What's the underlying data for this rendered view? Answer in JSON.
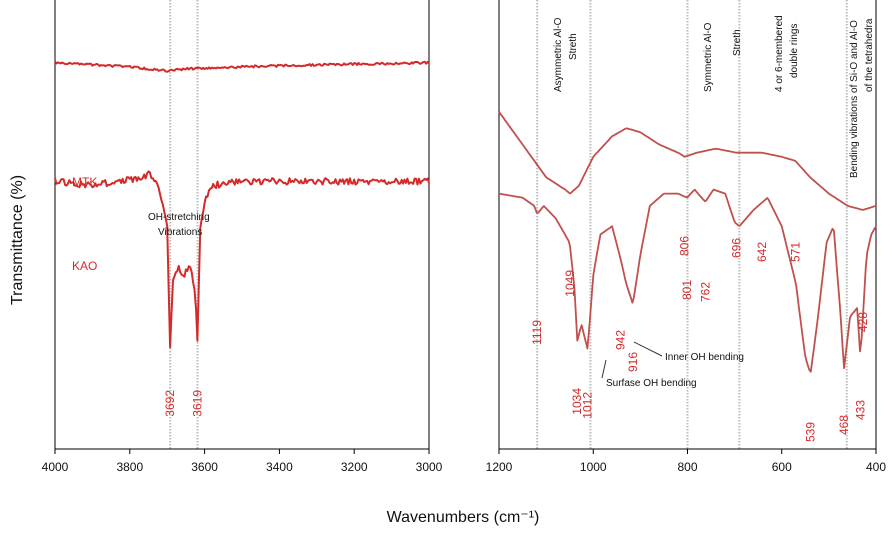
{
  "x_title": "Wavenumbers (cm⁻¹)",
  "y_title": "Transmittance (%)",
  "colors": {
    "series": "#d42a2a",
    "series_dark": "#c0504d",
    "guide": "#bdbdbd",
    "axis": "#000000"
  },
  "chart_data": [
    {
      "type": "line",
      "x_domain": [
        4000,
        3000
      ],
      "x_ticks": [
        "4000",
        "3800",
        "3600",
        "3400",
        "3200",
        "3000"
      ],
      "x_tick_values": [
        4000,
        3800,
        3600,
        3400,
        3200,
        3000
      ],
      "guides": [
        3692,
        3619
      ],
      "series": [
        {
          "name": "MTK",
          "label": "MTK",
          "points": [
            [
              4000,
              0.92
            ],
            [
              3900,
              0.915
            ],
            [
              3800,
              0.91
            ],
            [
              3700,
              0.9
            ],
            [
              3650,
              0.905
            ],
            [
              3500,
              0.91
            ],
            [
              3300,
              0.915
            ],
            [
              3000,
              0.92
            ]
          ]
        },
        {
          "name": "KAO",
          "label": "KAO",
          "points": [
            [
              4000,
              0.63
            ],
            [
              3900,
              0.62
            ],
            [
              3800,
              0.635
            ],
            [
              3760,
              0.64
            ],
            [
              3750,
              0.65
            ],
            [
              3720,
              0.61
            ],
            [
              3700,
              0.52
            ],
            [
              3692,
              0.22
            ],
            [
              3685,
              0.38
            ],
            [
              3670,
              0.42
            ],
            [
              3655,
              0.4
            ],
            [
              3640,
              0.43
            ],
            [
              3625,
              0.36
            ],
            [
              3619,
              0.23
            ],
            [
              3612,
              0.52
            ],
            [
              3600,
              0.58
            ],
            [
              3580,
              0.62
            ],
            [
              3500,
              0.63
            ],
            [
              3300,
              0.63
            ],
            [
              3000,
              0.63
            ]
          ]
        }
      ],
      "peak_labels": [
        "3692",
        "3619"
      ],
      "peak_positions": [
        3692,
        3619
      ],
      "annotations": [
        "OH-stretching",
        "Vibrations"
      ]
    },
    {
      "type": "line",
      "x_domain": [
        1200,
        400
      ],
      "x_ticks": [
        "1200",
        "1000",
        "800",
        "600",
        "400"
      ],
      "x_tick_values": [
        1200,
        1000,
        800,
        600,
        400
      ],
      "guides": [
        1119,
        1006,
        800,
        690,
        462
      ],
      "series": [
        {
          "name": "MTK",
          "points": [
            [
              1200,
              0.8
            ],
            [
              1150,
              0.72
            ],
            [
              1100,
              0.64
            ],
            [
              1060,
              0.61
            ],
            [
              1049,
              0.6
            ],
            [
              1030,
              0.62
            ],
            [
              1000,
              0.69
            ],
            [
              960,
              0.74
            ],
            [
              930,
              0.76
            ],
            [
              900,
              0.75
            ],
            [
              860,
              0.72
            ],
            [
              820,
              0.7
            ],
            [
              806,
              0.69
            ],
            [
              780,
              0.7
            ],
            [
              740,
              0.71
            ],
            [
              696,
              0.7
            ],
            [
              642,
              0.7
            ],
            [
              600,
              0.69
            ],
            [
              571,
              0.68
            ],
            [
              540,
              0.64
            ],
            [
              500,
              0.6
            ],
            [
              460,
              0.57
            ],
            [
              428,
              0.56
            ],
            [
              400,
              0.57
            ]
          ]
        },
        {
          "name": "KAO",
          "points": [
            [
              1200,
              0.6
            ],
            [
              1150,
              0.59
            ],
            [
              1125,
              0.57
            ],
            [
              1119,
              0.55
            ],
            [
              1105,
              0.57
            ],
            [
              1080,
              0.54
            ],
            [
              1050,
              0.48
            ],
            [
              1040,
              0.37
            ],
            [
              1034,
              0.24
            ],
            [
              1025,
              0.28
            ],
            [
              1012,
              0.22
            ],
            [
              1000,
              0.4
            ],
            [
              985,
              0.5
            ],
            [
              960,
              0.52
            ],
            [
              942,
              0.44
            ],
            [
              930,
              0.38
            ],
            [
              916,
              0.33
            ],
            [
              900,
              0.45
            ],
            [
              880,
              0.57
            ],
            [
              850,
              0.6
            ],
            [
              820,
              0.6
            ],
            [
              801,
              0.59
            ],
            [
              785,
              0.61
            ],
            [
              770,
              0.59
            ],
            [
              762,
              0.58
            ],
            [
              745,
              0.61
            ],
            [
              720,
              0.6
            ],
            [
              700,
              0.53
            ],
            [
              690,
              0.52
            ],
            [
              660,
              0.56
            ],
            [
              630,
              0.59
            ],
            [
              600,
              0.52
            ],
            [
              570,
              0.38
            ],
            [
              550,
              0.2
            ],
            [
              539,
              0.16
            ],
            [
              525,
              0.28
            ],
            [
              505,
              0.48
            ],
            [
              490,
              0.52
            ],
            [
              475,
              0.3
            ],
            [
              468,
              0.17
            ],
            [
              455,
              0.3
            ],
            [
              440,
              0.32
            ],
            [
              433,
              0.2
            ],
            [
              420,
              0.45
            ],
            [
              410,
              0.5
            ],
            [
              400,
              0.52
            ]
          ]
        }
      ],
      "peak_labels": [
        "1119",
        "1049",
        "1034",
        "1012",
        "942",
        "916",
        "806",
        "801",
        "762",
        "696",
        "642",
        "571",
        "539",
        "468",
        "433",
        "428"
      ],
      "peak_positions": [
        1119,
        1049,
        1034,
        1012,
        942,
        916,
        806,
        801,
        762,
        696,
        642,
        571,
        539,
        468,
        433,
        428
      ],
      "annotations": [
        "Asymmetric Al-O",
        "Streth",
        "Symmetric Al-O",
        "Streth",
        "4 or 6-membered",
        "double rings",
        "Bending vibrations of Si-O and Al-O",
        "of the tetrahedra",
        "Inner OH bending",
        "Surfase OH bending"
      ]
    }
  ]
}
